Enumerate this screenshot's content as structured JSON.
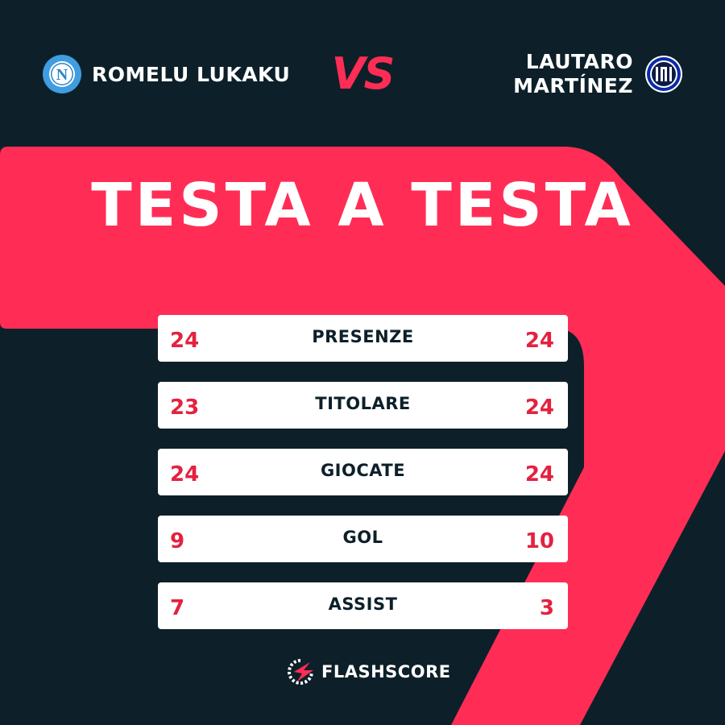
{
  "header": {
    "left_player": {
      "name": "ROMELU LUKAKU",
      "badge_letter": "N",
      "badge_icon": "napoli-crest-icon"
    },
    "vs": "VS",
    "right_player": {
      "name_line1": "LAUTARO",
      "name_line2": "MARTÍNEZ",
      "badge_icon": "inter-crest-icon"
    }
  },
  "headline": "TESTA A TESTA",
  "stats": [
    {
      "label": "PRESENZE",
      "left": "24",
      "right": "24"
    },
    {
      "label": "TITOLARE",
      "left": "23",
      "right": "24"
    },
    {
      "label": "GIOCATE",
      "left": "24",
      "right": "24"
    },
    {
      "label": "GOL",
      "left": "9",
      "right": "10"
    },
    {
      "label": "ASSIST",
      "left": "7",
      "right": "3"
    }
  ],
  "footer": {
    "brand": "FLASHSCORE",
    "brand_icon": "flashscore-logo-icon"
  },
  "colors": {
    "background": "#0d2029",
    "accent": "#ff2d55",
    "value": "#e4213f",
    "row_bg": "#ffffff"
  }
}
